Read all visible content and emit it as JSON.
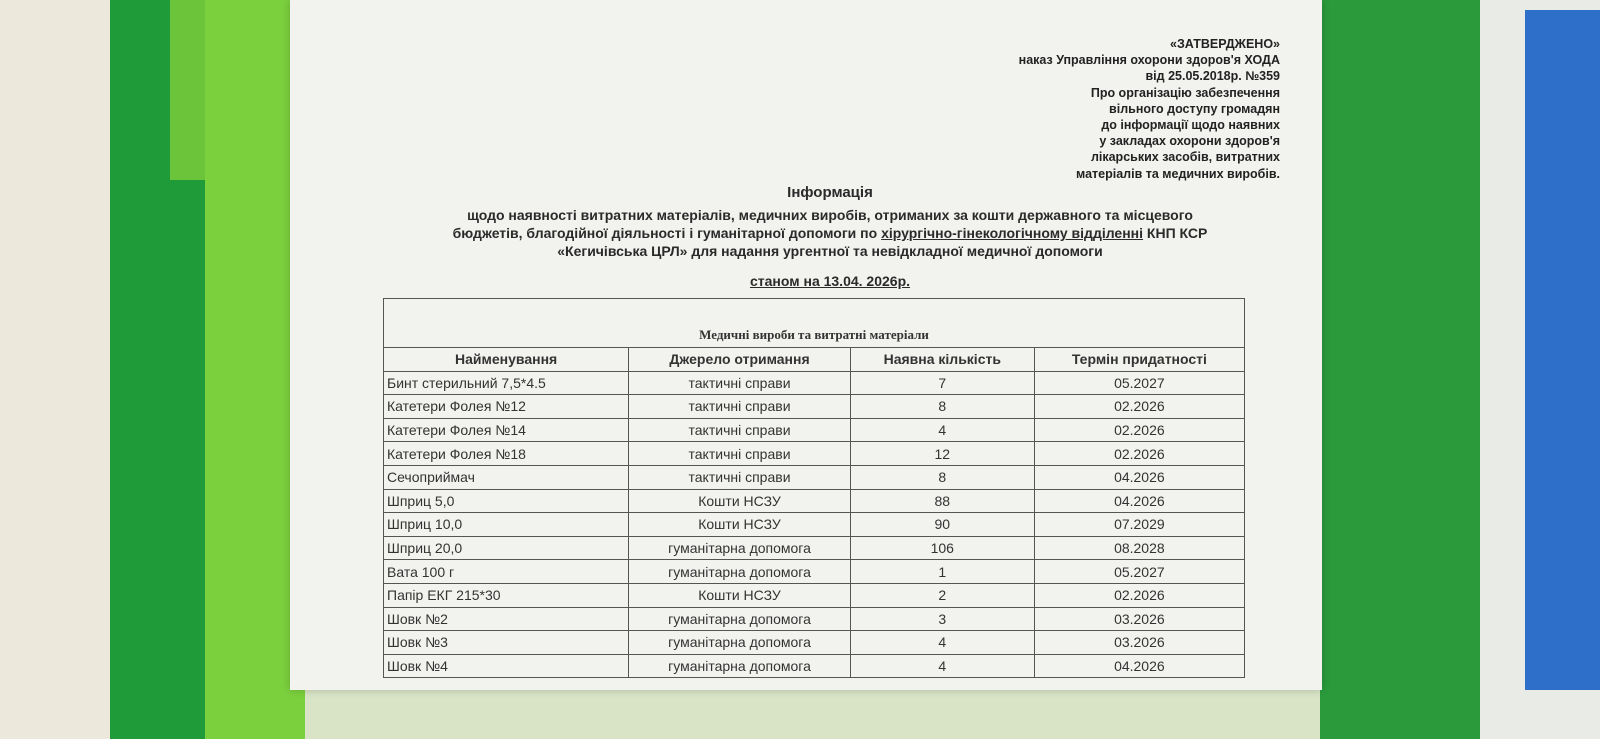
{
  "approval": [
    "«ЗАТВЕРДЖЕНО»",
    "наказ Управління охорони здоров'я ХОДА",
    "від 25.05.2018р. №359",
    "Про організацію забезпечення",
    "вільного доступу громадян",
    "до інформації щодо наявних",
    "у закладах охорони здоров'я",
    "лікарських засобів, витратних",
    "матеріалів та медичних виробів."
  ],
  "title": "Інформація",
  "subtitle": {
    "line1": "щодо наявності витратних матеріалів, медичних виробів, отриманих за кошти державного та місцевого",
    "line2_before": "бюджетів, благодійної діяльності і гуманітарної допомоги по",
    "line2_underlined": "хірургічно-гінекологічному відділенні",
    "line2_after": "КНП КСР",
    "line3": "«Кегичівська ЦРЛ» для надання ургентної та невідкладної медичної допомоги"
  },
  "date": "станом на 13.04. 2026р.",
  "table": {
    "title": "Медичні вироби та витратні матеріали",
    "headers": [
      "Найменування",
      "Джерело отримання",
      "Наявна кількість",
      "Термін придатності"
    ],
    "rows": [
      [
        "Бинт стерильний 7,5*4.5",
        "тактичні справи",
        "7",
        "05.2027"
      ],
      [
        "Катетери Фолея №12",
        "тактичні справи",
        "8",
        "02.2026"
      ],
      [
        "Катетери Фолея №14",
        "тактичні справи",
        "4",
        "02.2026"
      ],
      [
        "Катетери Фолея №18",
        "тактичні справи",
        "12",
        "02.2026"
      ],
      [
        "Сечоприймач",
        "тактичні справи",
        "8",
        "04.2026"
      ],
      [
        "Шприц 5,0",
        "Кошти НСЗУ",
        "88",
        "04.2026"
      ],
      [
        "Шприц 10,0",
        "Кошти НСЗУ",
        "90",
        "07.2029"
      ],
      [
        "Шприц 20,0",
        "гуманітарна допомога",
        "106",
        "08.2028"
      ],
      [
        "Вата 100 г",
        "гуманітарна допомога",
        "1",
        "05.2027"
      ],
      [
        "Папір ЕКГ 215*30",
        "Кошти НСЗУ",
        "2",
        "02.2026"
      ],
      [
        "Шовк №2",
        "гуманітарна допомога",
        "3",
        "03.2026"
      ],
      [
        "Шовк №3",
        "гуманітарна допомога",
        "4",
        "03.2026"
      ],
      [
        "Шовк №4",
        "гуманітарна допомога",
        "4",
        "04.2026"
      ]
    ]
  }
}
